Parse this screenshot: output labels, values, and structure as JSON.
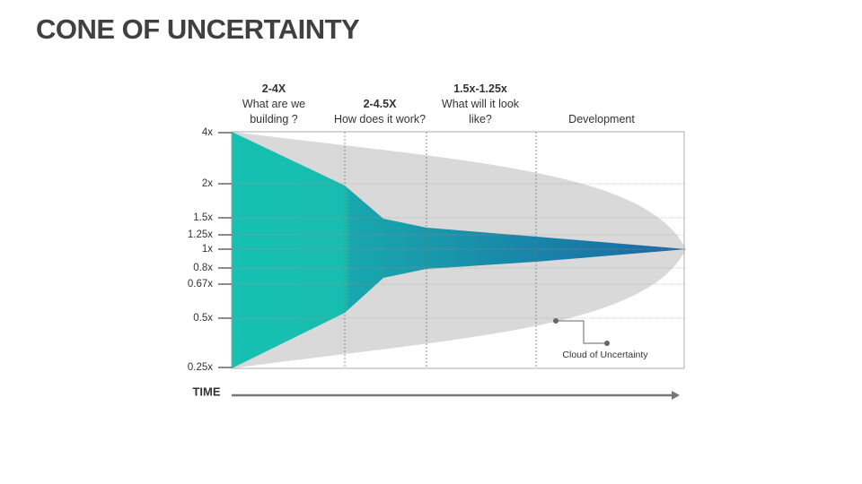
{
  "title": "CONE OF UNCERTAINTY",
  "phases": [
    {
      "range": "2-4X",
      "question": "What are we building ?"
    },
    {
      "range": "2-4.5X",
      "question": "How does it work?"
    },
    {
      "range": "1.5x-1.25x",
      "question": "What will it look like?"
    },
    {
      "question": "Development"
    }
  ],
  "y_labels": [
    "4x",
    "2x",
    "1.5x",
    "1.25x",
    "1x",
    "0.8x",
    "0.67x",
    "0.5x",
    "0.25x"
  ],
  "callout": "Cloud of Uncertainty",
  "time_label": "TIME"
}
